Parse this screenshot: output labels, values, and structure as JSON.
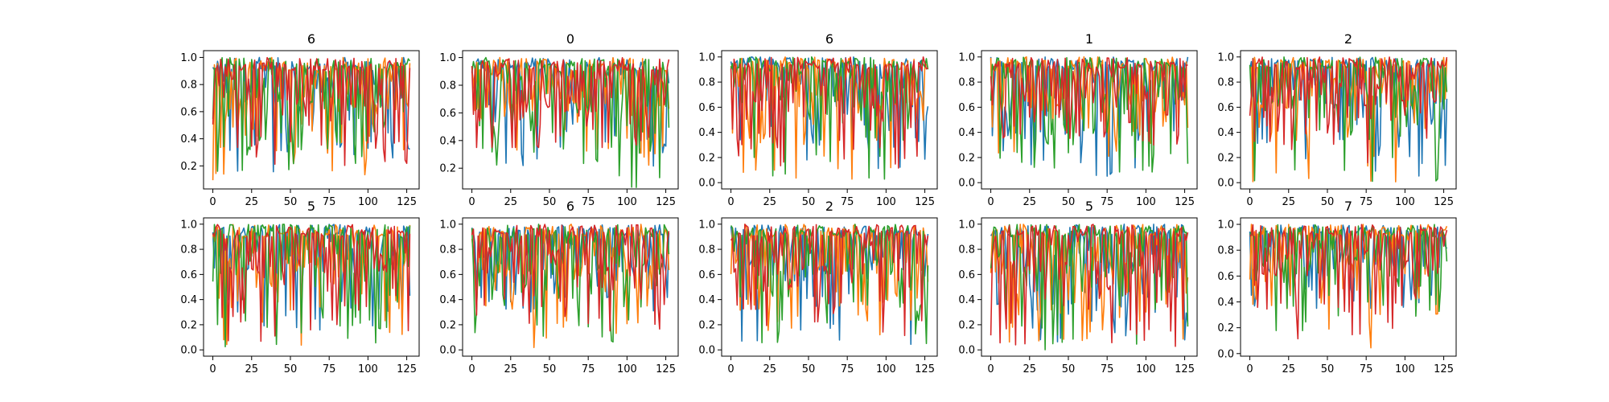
{
  "chart_data": [
    {
      "type": "line",
      "title": "6",
      "ylim": [
        0.03,
        1.05
      ],
      "yticks": [
        0.2,
        0.4,
        0.6,
        0.8,
        1.0
      ],
      "ytick_labels": [
        "0.2",
        "0.4",
        "0.6",
        "0.8",
        "1.0"
      ],
      "xticks": [
        0,
        25,
        50,
        75,
        100,
        125
      ],
      "xtick_labels": [
        "0",
        "25",
        "50",
        "75",
        "100",
        "125"
      ],
      "xlim": [
        -6,
        133
      ],
      "grid": false,
      "seed": 11,
      "dip": [
        0.15,
        0.08,
        0.14,
        0.2
      ],
      "series": [
        {
          "color": "#1f77b4",
          "x": [
            0,
            127
          ]
        },
        {
          "color": "#ff7f0e",
          "x": [
            0,
            127
          ]
        },
        {
          "color": "#2ca02c",
          "x": [
            0,
            127
          ]
        },
        {
          "color": "#d62728",
          "x": [
            0,
            127
          ]
        }
      ]
    },
    {
      "type": "line",
      "title": "0",
      "ylim": [
        0.05,
        1.05
      ],
      "yticks": [
        0.2,
        0.4,
        0.6,
        0.8,
        1.0
      ],
      "ytick_labels": [
        "0.2",
        "0.4",
        "0.6",
        "0.8",
        "1.0"
      ],
      "xticks": [
        0,
        25,
        50,
        75,
        100,
        125
      ],
      "xtick_labels": [
        "0",
        "25",
        "50",
        "75",
        "100",
        "125"
      ],
      "xlim": [
        -6,
        133
      ],
      "grid": false,
      "seed": 23,
      "dip": [
        0.2,
        0.15,
        0.06,
        0.35
      ],
      "series": [
        {
          "color": "#1f77b4",
          "x": [
            0,
            127
          ]
        },
        {
          "color": "#ff7f0e",
          "x": [
            0,
            127
          ]
        },
        {
          "color": "#2ca02c",
          "x": [
            0,
            127
          ]
        },
        {
          "color": "#d62728",
          "x": [
            0,
            127
          ]
        }
      ]
    },
    {
      "type": "line",
      "title": "6",
      "ylim": [
        -0.05,
        1.05
      ],
      "yticks": [
        0.0,
        0.2,
        0.4,
        0.6,
        0.8,
        1.0
      ],
      "ytick_labels": [
        "0.0",
        "0.2",
        "0.4",
        "0.6",
        "0.8",
        "1.0"
      ],
      "xticks": [
        0,
        25,
        50,
        75,
        100,
        125
      ],
      "xtick_labels": [
        "0",
        "25",
        "50",
        "75",
        "100",
        "125"
      ],
      "xlim": [
        -6,
        133
      ],
      "grid": false,
      "seed": 37,
      "dip": [
        0.05,
        0.02,
        0.0,
        0.05
      ],
      "series": [
        {
          "color": "#1f77b4",
          "x": [
            0,
            127
          ]
        },
        {
          "color": "#ff7f0e",
          "x": [
            0,
            127
          ]
        },
        {
          "color": "#2ca02c",
          "x": [
            0,
            127
          ]
        },
        {
          "color": "#d62728",
          "x": [
            0,
            127
          ]
        }
      ]
    },
    {
      "type": "line",
      "title": "1",
      "ylim": [
        -0.05,
        1.05
      ],
      "yticks": [
        0.0,
        0.2,
        0.4,
        0.6,
        0.8,
        1.0
      ],
      "ytick_labels": [
        "0.0",
        "0.2",
        "0.4",
        "0.6",
        "0.8",
        "1.0"
      ],
      "xticks": [
        0,
        25,
        50,
        75,
        100,
        125
      ],
      "xtick_labels": [
        "0",
        "25",
        "50",
        "75",
        "100",
        "125"
      ],
      "xlim": [
        -6,
        133
      ],
      "grid": false,
      "seed": 41,
      "dip": [
        0.02,
        0.2,
        0.0,
        0.3
      ],
      "series": [
        {
          "color": "#1f77b4",
          "x": [
            0,
            127
          ]
        },
        {
          "color": "#ff7f0e",
          "x": [
            0,
            127
          ]
        },
        {
          "color": "#2ca02c",
          "x": [
            0,
            127
          ]
        },
        {
          "color": "#d62728",
          "x": [
            0,
            127
          ]
        }
      ]
    },
    {
      "type": "line",
      "title": "2",
      "ylim": [
        -0.05,
        1.05
      ],
      "yticks": [
        0.0,
        0.2,
        0.4,
        0.6,
        0.8,
        1.0
      ],
      "ytick_labels": [
        "0.0",
        "0.2",
        "0.4",
        "0.6",
        "0.8",
        "1.0"
      ],
      "xticks": [
        0,
        25,
        50,
        75,
        100,
        125
      ],
      "xtick_labels": [
        "0",
        "25",
        "50",
        "75",
        "100",
        "125"
      ],
      "xlim": [
        -6,
        133
      ],
      "grid": false,
      "seed": 53,
      "dip": [
        0.05,
        0.0,
        0.0,
        0.1
      ],
      "series": [
        {
          "color": "#1f77b4",
          "x": [
            0,
            127
          ]
        },
        {
          "color": "#ff7f0e",
          "x": [
            0,
            127
          ]
        },
        {
          "color": "#2ca02c",
          "x": [
            0,
            127
          ]
        },
        {
          "color": "#d62728",
          "x": [
            0,
            127
          ]
        }
      ]
    },
    {
      "type": "line",
      "title": "5",
      "ylim": [
        -0.05,
        1.05
      ],
      "yticks": [
        0.0,
        0.2,
        0.4,
        0.6,
        0.8,
        1.0
      ],
      "ytick_labels": [
        "0.0",
        "0.2",
        "0.4",
        "0.6",
        "0.8",
        "1.0"
      ],
      "xticks": [
        0,
        25,
        50,
        75,
        100,
        125
      ],
      "xtick_labels": [
        "0",
        "25",
        "50",
        "75",
        "100",
        "125"
      ],
      "xlim": [
        -6,
        133
      ],
      "grid": false,
      "seed": 67,
      "dip": [
        0.15,
        0.0,
        0.02,
        0.05
      ],
      "series": [
        {
          "color": "#1f77b4",
          "x": [
            0,
            127
          ]
        },
        {
          "color": "#ff7f0e",
          "x": [
            0,
            127
          ]
        },
        {
          "color": "#2ca02c",
          "x": [
            0,
            127
          ]
        },
        {
          "color": "#d62728",
          "x": [
            0,
            127
          ]
        }
      ]
    },
    {
      "type": "line",
      "title": "6",
      "ylim": [
        -0.05,
        1.05
      ],
      "yticks": [
        0.0,
        0.2,
        0.4,
        0.6,
        0.8,
        1.0
      ],
      "ytick_labels": [
        "0.0",
        "0.2",
        "0.4",
        "0.6",
        "0.8",
        "1.0"
      ],
      "xticks": [
        0,
        25,
        50,
        75,
        100,
        125
      ],
      "xtick_labels": [
        "0",
        "25",
        "50",
        "75",
        "100",
        "125"
      ],
      "xlim": [
        -6,
        133
      ],
      "grid": false,
      "seed": 71,
      "dip": [
        0.3,
        0.0,
        0.02,
        0.15
      ],
      "series": [
        {
          "color": "#1f77b4",
          "x": [
            0,
            127
          ]
        },
        {
          "color": "#ff7f0e",
          "x": [
            0,
            127
          ]
        },
        {
          "color": "#2ca02c",
          "x": [
            0,
            127
          ]
        },
        {
          "color": "#d62728",
          "x": [
            0,
            127
          ]
        }
      ]
    },
    {
      "type": "line",
      "title": "2",
      "ylim": [
        -0.05,
        1.05
      ],
      "yticks": [
        0.0,
        0.2,
        0.4,
        0.6,
        0.8,
        1.0
      ],
      "ytick_labels": [
        "0.0",
        "0.2",
        "0.4",
        "0.6",
        "0.8",
        "1.0"
      ],
      "xticks": [
        0,
        25,
        50,
        75,
        100,
        125
      ],
      "xtick_labels": [
        "0",
        "25",
        "50",
        "75",
        "100",
        "125"
      ],
      "xlim": [
        -6,
        133
      ],
      "grid": false,
      "seed": 83,
      "dip": [
        0.02,
        0.1,
        0.0,
        0.1
      ],
      "series": [
        {
          "color": "#1f77b4",
          "x": [
            0,
            127
          ]
        },
        {
          "color": "#ff7f0e",
          "x": [
            0,
            127
          ]
        },
        {
          "color": "#2ca02c",
          "x": [
            0,
            127
          ]
        },
        {
          "color": "#d62728",
          "x": [
            0,
            127
          ]
        }
      ]
    },
    {
      "type": "line",
      "title": "5",
      "ylim": [
        -0.05,
        1.05
      ],
      "yticks": [
        0.0,
        0.2,
        0.4,
        0.6,
        0.8,
        1.0
      ],
      "ytick_labels": [
        "0.0",
        "0.2",
        "0.4",
        "0.6",
        "0.8",
        "1.0"
      ],
      "xticks": [
        0,
        25,
        50,
        75,
        100,
        125
      ],
      "xtick_labels": [
        "0",
        "25",
        "50",
        "75",
        "100",
        "125"
      ],
      "xlim": [
        -6,
        133
      ],
      "grid": false,
      "seed": 97,
      "dip": [
        0.05,
        0.05,
        0.0,
        0.0
      ],
      "series": [
        {
          "color": "#1f77b4",
          "x": [
            0,
            127
          ]
        },
        {
          "color": "#ff7f0e",
          "x": [
            0,
            127
          ]
        },
        {
          "color": "#2ca02c",
          "x": [
            0,
            127
          ]
        },
        {
          "color": "#d62728",
          "x": [
            0,
            127
          ]
        }
      ]
    },
    {
      "type": "line",
      "title": "7",
      "ylim": [
        -0.02,
        1.05
      ],
      "yticks": [
        0.0,
        0.2,
        0.4,
        0.6,
        0.8,
        1.0
      ],
      "ytick_labels": [
        "0.0",
        "0.2",
        "0.4",
        "0.6",
        "0.8",
        "1.0"
      ],
      "xticks": [
        0,
        25,
        50,
        75,
        100,
        125
      ],
      "xtick_labels": [
        "0",
        "25",
        "50",
        "75",
        "100",
        "125"
      ],
      "xlim": [
        -6,
        133
      ],
      "grid": false,
      "seed": 101,
      "dip": [
        0.35,
        0.02,
        0.15,
        0.1
      ],
      "series": [
        {
          "color": "#1f77b4",
          "x": [
            0,
            127
          ]
        },
        {
          "color": "#ff7f0e",
          "x": [
            0,
            127
          ]
        },
        {
          "color": "#2ca02c",
          "x": [
            0,
            127
          ]
        },
        {
          "color": "#d62728",
          "x": [
            0,
            127
          ]
        }
      ]
    }
  ]
}
